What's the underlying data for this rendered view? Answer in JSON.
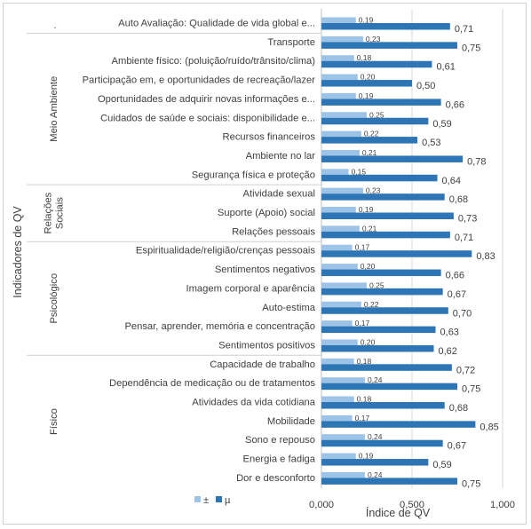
{
  "chart_data": {
    "type": "bar",
    "orientation": "horizontal",
    "xlabel": "Índice de QV",
    "ylabel": "Indicadores de QV",
    "xlim": [
      0,
      1
    ],
    "xticks": [
      0,
      0.5,
      1
    ],
    "xtick_labels": [
      "0,000",
      "0,500",
      "1,000"
    ],
    "grid": true,
    "legend_position": "bottom-left",
    "colors": {
      "pm": "#9dc3e6",
      "mu": "#2e75b6"
    },
    "series": [
      {
        "name": "±",
        "key": "pm"
      },
      {
        "name": "µ",
        "key": "mu"
      }
    ],
    "groups": [
      {
        "label": "·",
        "rows": 1
      },
      {
        "label": "Meio Ambiente",
        "rows": 8
      },
      {
        "label": "Relações Sociais",
        "label_lines": [
          "Relações",
          "Sociais"
        ],
        "rows": 3
      },
      {
        "label": "Psicológico",
        "rows": 6
      },
      {
        "label": "Físico",
        "rows": 7
      }
    ],
    "rows": [
      {
        "label": "Auto Avaliação: Qualidade de vida global e...",
        "pm": 0.19,
        "mu": 0.71,
        "pm_label": "0,19",
        "mu_label": "0,71"
      },
      {
        "label": "Transporte",
        "pm": 0.23,
        "mu": 0.75,
        "pm_label": "0,23",
        "mu_label": "0,75"
      },
      {
        "label": "Ambiente físico: (poluição/ruído/trânsito/clima)",
        "pm": 0.18,
        "mu": 0.61,
        "pm_label": "0,18",
        "mu_label": "0,61"
      },
      {
        "label": "Participação em, e oportunidades de recreação/lazer",
        "pm": 0.2,
        "mu": 0.5,
        "pm_label": "0,20",
        "mu_label": "0,50"
      },
      {
        "label": "Oportunidades de adquirir novas informações e...",
        "pm": 0.19,
        "mu": 0.66,
        "pm_label": "0,19",
        "mu_label": "0,66"
      },
      {
        "label": "Cuidados de saúde e sociais: disponibilidade e...",
        "pm": 0.25,
        "mu": 0.59,
        "pm_label": "0,25",
        "mu_label": "0,59"
      },
      {
        "label": "Recursos financeiros",
        "pm": 0.22,
        "mu": 0.53,
        "pm_label": "0,22",
        "mu_label": "0,53"
      },
      {
        "label": "Ambiente no lar",
        "pm": 0.21,
        "mu": 0.78,
        "pm_label": "0,21",
        "mu_label": "0,78"
      },
      {
        "label": "Segurança física e proteção",
        "pm": 0.15,
        "mu": 0.64,
        "pm_label": "0,15",
        "mu_label": "0,64"
      },
      {
        "label": "Atividade sexual",
        "pm": 0.23,
        "mu": 0.68,
        "pm_label": "0,23",
        "mu_label": "0,68"
      },
      {
        "label": "Suporte (Apoio) social",
        "pm": 0.19,
        "mu": 0.73,
        "pm_label": "0,19",
        "mu_label": "0,73"
      },
      {
        "label": "Relações pessoais",
        "pm": 0.21,
        "mu": 0.71,
        "pm_label": "0,21",
        "mu_label": "0,71"
      },
      {
        "label": "Espiritualidade/religião/crenças pessoais",
        "pm": 0.17,
        "mu": 0.83,
        "pm_label": "0,17",
        "mu_label": "0,83"
      },
      {
        "label": "Sentimentos negativos",
        "pm": 0.2,
        "mu": 0.66,
        "pm_label": "0,20",
        "mu_label": "0,66"
      },
      {
        "label": "Imagem corporal e aparência",
        "pm": 0.25,
        "mu": 0.67,
        "pm_label": "0,25",
        "mu_label": "0,67"
      },
      {
        "label": "Auto-estima",
        "pm": 0.22,
        "mu": 0.7,
        "pm_label": "0,22",
        "mu_label": "0,70"
      },
      {
        "label": "Pensar, aprender, memória e concentração",
        "pm": 0.17,
        "mu": 0.63,
        "pm_label": "0,17",
        "mu_label": "0,63"
      },
      {
        "label": "Sentimentos positivos",
        "pm": 0.2,
        "mu": 0.62,
        "pm_label": "0,20",
        "mu_label": "0,62"
      },
      {
        "label": "Capacidade de trabalho",
        "pm": 0.18,
        "mu": 0.72,
        "pm_label": "0,18",
        "mu_label": "0,72"
      },
      {
        "label": "Dependência de medicação ou de tratamentos",
        "pm": 0.24,
        "mu": 0.75,
        "pm_label": "0,24",
        "mu_label": "0,75"
      },
      {
        "label": "Atividades da vida cotidiana",
        "pm": 0.18,
        "mu": 0.68,
        "pm_label": "0,18",
        "mu_label": "0,68"
      },
      {
        "label": "Mobilidade",
        "pm": 0.17,
        "mu": 0.85,
        "pm_label": "0,17",
        "mu_label": "0,85"
      },
      {
        "label": "Sono e repouso",
        "pm": 0.24,
        "mu": 0.67,
        "pm_label": "0,24",
        "mu_label": "0,67"
      },
      {
        "label": "Energia e fadiga",
        "pm": 0.19,
        "mu": 0.59,
        "pm_label": "0,19",
        "mu_label": "0,59"
      },
      {
        "label": "Dor e desconforto",
        "pm": 0.24,
        "mu": 0.75,
        "pm_label": "0,24",
        "mu_label": "0,75"
      }
    ]
  }
}
